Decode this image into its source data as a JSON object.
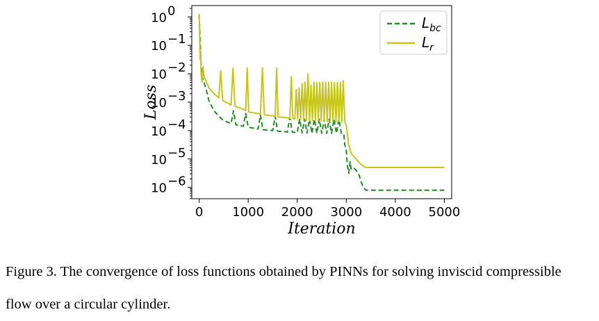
{
  "chart_data": {
    "type": "line",
    "xlabel": "Iteration",
    "ylabel": "Loss",
    "xlim": [
      0,
      5000
    ],
    "ylim_log10": [
      -6.4,
      0.4
    ],
    "yscale": "log",
    "xticks": [
      0,
      1000,
      2000,
      3000,
      4000,
      5000
    ],
    "xtick_labels": [
      "0",
      "1000",
      "2000",
      "3000",
      "4000",
      "5000"
    ],
    "yticks_exp": [
      0,
      -1,
      -2,
      -3,
      -4,
      -5,
      -6
    ],
    "ytick_labels": [
      "10",
      "10",
      "10",
      "10",
      "10",
      "10",
      "10"
    ],
    "ytick_exponents": [
      "0",
      "−1",
      "−2",
      "−3",
      "−4",
      "−5",
      "−6"
    ],
    "legend_position": "top-right",
    "grid": false,
    "series": [
      {
        "key": "Lbc",
        "name_main": "L",
        "name_sub": "bc",
        "color": "#228b22",
        "style": "dashed",
        "x": [
          0,
          20,
          40,
          60,
          80,
          100,
          150,
          200,
          300,
          400,
          500,
          650,
          700,
          750,
          900,
          950,
          1000,
          1200,
          1250,
          1300,
          1500,
          1550,
          1600,
          1800,
          1850,
          1900,
          2000,
          2050,
          2100,
          2150,
          2200,
          2250,
          2300,
          2350,
          2400,
          2450,
          2500,
          2550,
          2600,
          2650,
          2700,
          2750,
          2800,
          2850,
          2900,
          2950,
          2970,
          3000,
          3020,
          3050,
          3080,
          3100,
          3150,
          3200,
          3250,
          3300,
          3350,
          3400,
          3500,
          4000,
          4500,
          5000
        ],
        "y_log10": [
          0.1,
          -0.8,
          -1.7,
          -2.1,
          -2.2,
          -2.3,
          -2.6,
          -2.95,
          -3.3,
          -3.5,
          -3.65,
          -3.75,
          -3.3,
          -3.8,
          -3.85,
          -3.4,
          -3.88,
          -3.95,
          -3.45,
          -3.97,
          -4.0,
          -3.5,
          -4.02,
          -4.05,
          -3.55,
          -4.06,
          -4.07,
          -3.6,
          -4.08,
          -3.6,
          -4.09,
          -3.6,
          -4.1,
          -3.6,
          -4.1,
          -3.6,
          -4.1,
          -3.6,
          -4.1,
          -3.6,
          -4.1,
          -3.6,
          -4.1,
          -3.6,
          -4.1,
          -4.12,
          -4.5,
          -4.7,
          -5.2,
          -5.5,
          -5.1,
          -5.35,
          -5.3,
          -5.4,
          -5.5,
          -5.8,
          -6.0,
          -6.1,
          -6.1,
          -6.1,
          -6.1,
          -6.1
        ]
      },
      {
        "key": "Lr",
        "name_main": "L",
        "name_sub": "r",
        "color": "#c6c41b",
        "style": "solid",
        "x": [
          0,
          20,
          30,
          40,
          60,
          80,
          100,
          150,
          200,
          300,
          400,
          440,
          480,
          600,
          650,
          690,
          730,
          900,
          950,
          980,
          1010,
          1200,
          1250,
          1290,
          1330,
          1500,
          1550,
          1580,
          1610,
          1800,
          1850,
          1880,
          1910,
          1950,
          1980,
          2010,
          2040,
          2070,
          2100,
          2130,
          2160,
          2190,
          2220,
          2250,
          2280,
          2310,
          2340,
          2370,
          2400,
          2430,
          2460,
          2490,
          2520,
          2550,
          2580,
          2610,
          2640,
          2670,
          2700,
          2730,
          2760,
          2790,
          2820,
          2850,
          2880,
          2910,
          2940,
          2970,
          3000,
          3050,
          3100,
          3200,
          3300,
          3400,
          4000,
          5000
        ],
        "y_log10": [
          0.1,
          -1.5,
          -1.2,
          -2.0,
          -2.3,
          -1.75,
          -2.1,
          -2.3,
          -2.5,
          -2.7,
          -2.85,
          -1.9,
          -2.95,
          -3.05,
          -3.1,
          -1.8,
          -3.15,
          -3.25,
          -3.3,
          -1.8,
          -3.35,
          -3.4,
          -3.42,
          -1.8,
          -3.45,
          -3.48,
          -3.5,
          -1.8,
          -3.52,
          -3.55,
          -3.57,
          -2.1,
          -3.58,
          -3.6,
          -2.55,
          -3.6,
          -2.5,
          -3.62,
          -2.35,
          -3.63,
          -2.3,
          -3.64,
          -2.0,
          -3.65,
          -2.4,
          -3.65,
          -2.3,
          -3.66,
          -2.3,
          -3.66,
          -2.3,
          -3.67,
          -2.3,
          -3.67,
          -2.3,
          -3.68,
          -2.3,
          -3.68,
          -2.3,
          -3.68,
          -2.3,
          -3.69,
          -2.3,
          -3.69,
          -2.3,
          -3.7,
          -2.25,
          -3.7,
          -3.8,
          -4.5,
          -4.8,
          -5.0,
          -5.2,
          -5.3,
          -5.3,
          -5.3
        ]
      }
    ]
  },
  "caption": {
    "line1": "Figure 3. The convergence of loss functions obtained by PINNs for solving inviscid compressible",
    "line2": "flow over a circular cylinder."
  }
}
